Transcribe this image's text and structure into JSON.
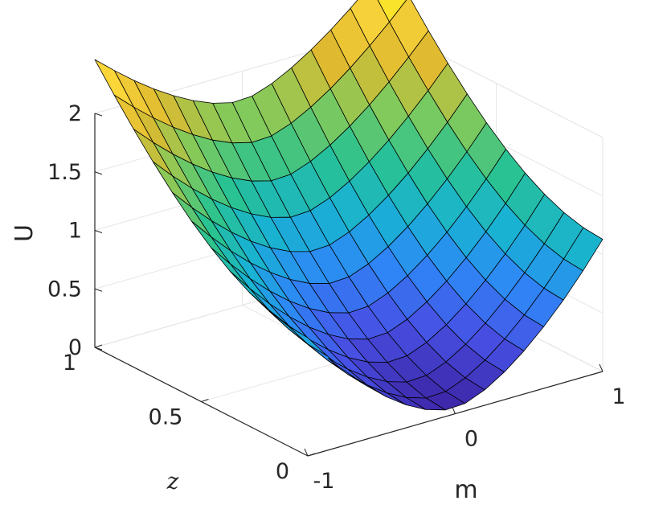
{
  "chart_data": {
    "type": "surface",
    "title": "",
    "xlabel": "m",
    "ylabel": "z",
    "zlabel": "U",
    "xlim": [
      -1,
      1
    ],
    "ylim": [
      0,
      1
    ],
    "zlim": [
      0,
      2
    ],
    "x_ticks": [
      "-1",
      "0",
      "1"
    ],
    "y_ticks": [
      "0",
      "0.5",
      "1"
    ],
    "z_ticks": [
      "0",
      "0.5",
      "1",
      "1.5",
      "2"
    ],
    "grid": true,
    "colormap": "parula",
    "colormap_stops": [
      "#3e26a8",
      "#4751e5",
      "#2e87f7",
      "#19b2d3",
      "#29c291",
      "#82ca5b",
      "#dfba30",
      "#fad43a",
      "#f9fb15"
    ],
    "edge_color": "#000000",
    "mesh": {
      "m": [
        -1,
        -0.8667,
        -0.7333,
        -0.6,
        -0.4667,
        -0.3333,
        -0.2,
        -0.0667,
        0.0667,
        0.2,
        0.3333,
        0.4667,
        0.6,
        0.7333,
        0.8667,
        1
      ],
      "z": [
        0,
        0.0909,
        0.1818,
        0.2727,
        0.3636,
        0.4545,
        0.5455,
        0.6364,
        0.7273,
        0.8182,
        0.9091,
        1
      ]
    },
    "surface": {
      "corner_values": {
        "m=-1,z=1": 1.82,
        "m=1,z=1": 1.85,
        "m=-1,z=0": 1.3,
        "m=1,z=0": 1.0,
        "min_near_m=0,z=0": 0.05
      }
    }
  }
}
